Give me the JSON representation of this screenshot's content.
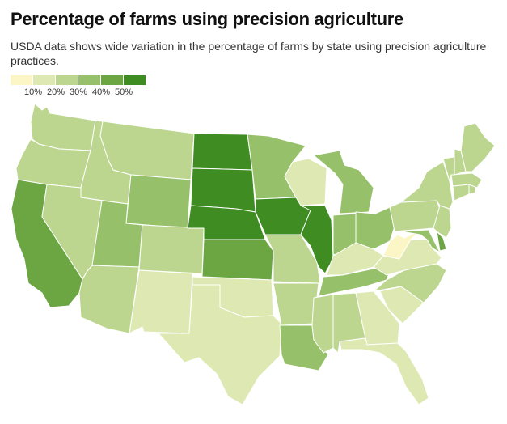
{
  "title": "Percentage of farms using precision agriculture",
  "subtitle": "USDA data shows wide variation in the percentage of farms by state using precision agriculture practices.",
  "legend": {
    "labels": [
      "10%",
      "20%",
      "30%",
      "40%",
      "50%"
    ],
    "colors": [
      "#fcf6c6",
      "#dde8b2",
      "#bcd690",
      "#96c16a",
      "#6ba642",
      "#3f8c22"
    ]
  },
  "states": [
    {
      "name": "Washington",
      "bin": 2
    },
    {
      "name": "Oregon",
      "bin": 2
    },
    {
      "name": "California",
      "bin": 4
    },
    {
      "name": "Idaho",
      "bin": 2
    },
    {
      "name": "Nevada",
      "bin": 2
    },
    {
      "name": "Montana",
      "bin": 2
    },
    {
      "name": "Wyoming",
      "bin": 3
    },
    {
      "name": "Utah",
      "bin": 3
    },
    {
      "name": "Arizona",
      "bin": 2
    },
    {
      "name": "Colorado",
      "bin": 2
    },
    {
      "name": "New Mexico",
      "bin": 1
    },
    {
      "name": "North Dakota",
      "bin": 5
    },
    {
      "name": "South Dakota",
      "bin": 5
    },
    {
      "name": "Nebraska",
      "bin": 5
    },
    {
      "name": "Kansas",
      "bin": 4
    },
    {
      "name": "Oklahoma",
      "bin": 1
    },
    {
      "name": "Texas",
      "bin": 1
    },
    {
      "name": "Minnesota",
      "bin": 3
    },
    {
      "name": "Iowa",
      "bin": 5
    },
    {
      "name": "Missouri",
      "bin": 2
    },
    {
      "name": "Arkansas",
      "bin": 2
    },
    {
      "name": "Louisiana",
      "bin": 3
    },
    {
      "name": "Wisconsin",
      "bin": 1
    },
    {
      "name": "Illinois",
      "bin": 5
    },
    {
      "name": "Michigan",
      "bin": 3
    },
    {
      "name": "Indiana",
      "bin": 3
    },
    {
      "name": "Ohio",
      "bin": 3
    },
    {
      "name": "Kentucky",
      "bin": 1
    },
    {
      "name": "Tennessee",
      "bin": 3
    },
    {
      "name": "Mississippi",
      "bin": 2
    },
    {
      "name": "Alabama",
      "bin": 2
    },
    {
      "name": "Georgia",
      "bin": 1
    },
    {
      "name": "Florida",
      "bin": 1
    },
    {
      "name": "South Carolina",
      "bin": 1
    },
    {
      "name": "North Carolina",
      "bin": 2
    },
    {
      "name": "Virginia",
      "bin": 1
    },
    {
      "name": "West Virginia",
      "bin": 0
    },
    {
      "name": "Maryland",
      "bin": 3
    },
    {
      "name": "Delaware",
      "bin": 4
    },
    {
      "name": "Pennsylvania",
      "bin": 2
    },
    {
      "name": "New Jersey",
      "bin": 2
    },
    {
      "name": "New York",
      "bin": 2
    },
    {
      "name": "Connecticut",
      "bin": 2
    },
    {
      "name": "Rhode Island",
      "bin": 2
    },
    {
      "name": "Massachusetts",
      "bin": 2
    },
    {
      "name": "Vermont",
      "bin": 2
    },
    {
      "name": "New Hampshire",
      "bin": 2
    },
    {
      "name": "Maine",
      "bin": 2
    }
  ]
}
